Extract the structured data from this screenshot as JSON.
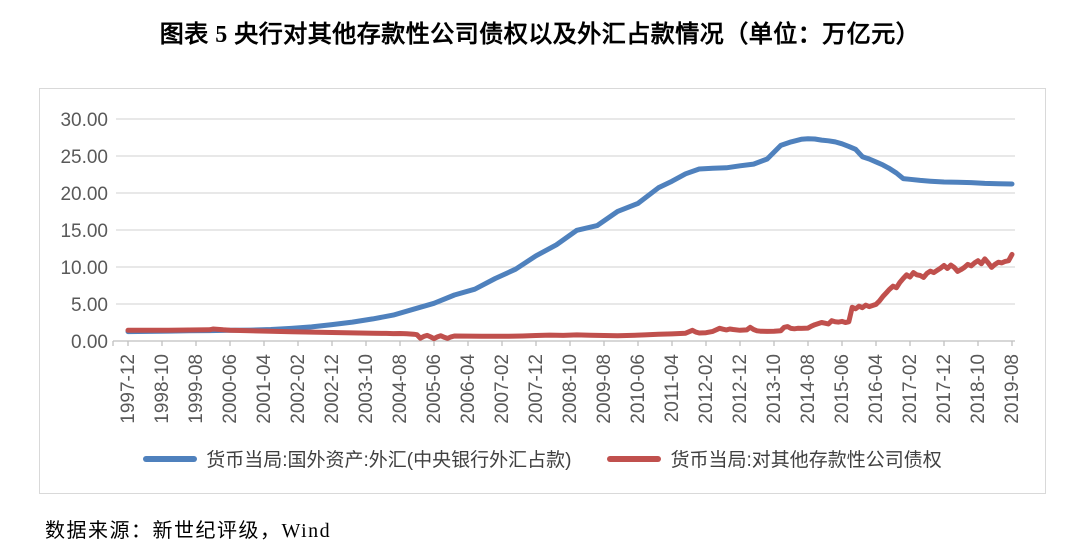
{
  "title": "图表 5  央行对其他存款性公司债权以及外汇占款情况（单位：万亿元）",
  "source_note": "数据来源：新世纪评级，Wind",
  "colors": {
    "series_fx_blue": "#4f81bd",
    "series_claims_red": "#c0504d",
    "gridline": "#d9d9d9",
    "axis": "#bfbfbf",
    "tick_label": "#595959",
    "legend_text": "#404040",
    "border": "#d9d9d9"
  },
  "chart_data": {
    "type": "line",
    "title": "图表 5  央行对其他存款性公司债权以及外汇占款情况（单位：万亿元）",
    "unit_label": "万亿元",
    "xlabel": "",
    "ylabel": "",
    "ylim": [
      0,
      30
    ],
    "y_tick_step": 5,
    "y_tick_labels": [
      "0.00",
      "5.00",
      "10.00",
      "15.00",
      "20.00",
      "25.00",
      "30.00"
    ],
    "x_tick_labels": [
      "1997-12",
      "1998-10",
      "1999-08",
      "2000-06",
      "2001-04",
      "2002-02",
      "2002-12",
      "2003-10",
      "2004-08",
      "2005-06",
      "2006-04",
      "2007-02",
      "2007-12",
      "2008-10",
      "2009-08",
      "2010-06",
      "2011-04",
      "2012-02",
      "2012-12",
      "2013-10",
      "2014-08",
      "2015-06",
      "2016-04",
      "2017-02",
      "2017-12",
      "2018-10",
      "2019-08"
    ],
    "x_month_span": 260,
    "grid": "horizontal",
    "legend_position": "bottom",
    "series": [
      {
        "name": "货币当局:国外资产:外汇(中央银行外汇占款)",
        "color": "#4f81bd",
        "points": [
          [
            0,
            1.27
          ],
          [
            6,
            1.3
          ],
          [
            12,
            1.34
          ],
          [
            18,
            1.38
          ],
          [
            24,
            1.41
          ],
          [
            30,
            1.44
          ],
          [
            36,
            1.47
          ],
          [
            42,
            1.55
          ],
          [
            48,
            1.7
          ],
          [
            54,
            1.9
          ],
          [
            60,
            2.21
          ],
          [
            66,
            2.55
          ],
          [
            72,
            2.98
          ],
          [
            78,
            3.5
          ],
          [
            84,
            4.3
          ],
          [
            90,
            5.1
          ],
          [
            96,
            6.21
          ],
          [
            102,
            7.0
          ],
          [
            108,
            8.44
          ],
          [
            114,
            9.7
          ],
          [
            120,
            11.52
          ],
          [
            126,
            13.0
          ],
          [
            132,
            14.96
          ],
          [
            138,
            15.6
          ],
          [
            144,
            17.51
          ],
          [
            150,
            18.6
          ],
          [
            156,
            20.7
          ],
          [
            160,
            21.6
          ],
          [
            164,
            22.6
          ],
          [
            168,
            23.24
          ],
          [
            172,
            23.35
          ],
          [
            176,
            23.4
          ],
          [
            180,
            23.67
          ],
          [
            184,
            23.9
          ],
          [
            188,
            24.6
          ],
          [
            192,
            26.43
          ],
          [
            195,
            26.9
          ],
          [
            198,
            27.25
          ],
          [
            200,
            27.32
          ],
          [
            202,
            27.3
          ],
          [
            204,
            27.15
          ],
          [
            206,
            27.05
          ],
          [
            208,
            26.9
          ],
          [
            210,
            26.65
          ],
          [
            212,
            26.3
          ],
          [
            214,
            25.9
          ],
          [
            216,
            24.9
          ],
          [
            218,
            24.6
          ],
          [
            220,
            24.2
          ],
          [
            222,
            23.8
          ],
          [
            224,
            23.3
          ],
          [
            226,
            22.7
          ],
          [
            228,
            21.94
          ],
          [
            230,
            21.85
          ],
          [
            233,
            21.7
          ],
          [
            236,
            21.6
          ],
          [
            240,
            21.48
          ],
          [
            244,
            21.44
          ],
          [
            248,
            21.4
          ],
          [
            252,
            21.3
          ],
          [
            256,
            21.26
          ],
          [
            260,
            21.21
          ]
        ]
      },
      {
        "name": "货币当局:对其他存款性公司债权",
        "color": "#c0504d",
        "points": [
          [
            0,
            1.45
          ],
          [
            6,
            1.45
          ],
          [
            12,
            1.46
          ],
          [
            18,
            1.48
          ],
          [
            24,
            1.52
          ],
          [
            25,
            1.62
          ],
          [
            26,
            1.6
          ],
          [
            28,
            1.52
          ],
          [
            30,
            1.46
          ],
          [
            33,
            1.42
          ],
          [
            36,
            1.38
          ],
          [
            42,
            1.32
          ],
          [
            48,
            1.26
          ],
          [
            54,
            1.2
          ],
          [
            60,
            1.15
          ],
          [
            66,
            1.1
          ],
          [
            72,
            1.06
          ],
          [
            76,
            1.03
          ],
          [
            78,
            1.0
          ],
          [
            80,
            1.02
          ],
          [
            82,
            0.98
          ],
          [
            84,
            0.92
          ],
          [
            85,
            0.85
          ],
          [
            86,
            0.38
          ],
          [
            87,
            0.62
          ],
          [
            88,
            0.76
          ],
          [
            89,
            0.55
          ],
          [
            90,
            0.32
          ],
          [
            91,
            0.56
          ],
          [
            92,
            0.72
          ],
          [
            93,
            0.5
          ],
          [
            94,
            0.35
          ],
          [
            95,
            0.56
          ],
          [
            96,
            0.68
          ],
          [
            100,
            0.66
          ],
          [
            104,
            0.65
          ],
          [
            108,
            0.64
          ],
          [
            112,
            0.65
          ],
          [
            116,
            0.68
          ],
          [
            120,
            0.74
          ],
          [
            124,
            0.8
          ],
          [
            126,
            0.78
          ],
          [
            128,
            0.76
          ],
          [
            132,
            0.82
          ],
          [
            136,
            0.78
          ],
          [
            140,
            0.74
          ],
          [
            144,
            0.72
          ],
          [
            148,
            0.76
          ],
          [
            152,
            0.82
          ],
          [
            156,
            0.9
          ],
          [
            160,
            0.96
          ],
          [
            164,
            1.05
          ],
          [
            166,
            1.45
          ],
          [
            167,
            1.2
          ],
          [
            168,
            1.08
          ],
          [
            170,
            1.12
          ],
          [
            172,
            1.3
          ],
          [
            174,
            1.72
          ],
          [
            175,
            1.6
          ],
          [
            176,
            1.5
          ],
          [
            177,
            1.62
          ],
          [
            178,
            1.55
          ],
          [
            180,
            1.45
          ],
          [
            182,
            1.5
          ],
          [
            183,
            1.85
          ],
          [
            184,
            1.55
          ],
          [
            185,
            1.38
          ],
          [
            186,
            1.32
          ],
          [
            188,
            1.3
          ],
          [
            190,
            1.33
          ],
          [
            192,
            1.38
          ],
          [
            193,
            1.85
          ],
          [
            194,
            1.95
          ],
          [
            195,
            1.7
          ],
          [
            196,
            1.65
          ],
          [
            197,
            1.72
          ],
          [
            198,
            1.7
          ],
          [
            200,
            1.75
          ],
          [
            201,
            2.0
          ],
          [
            202,
            2.2
          ],
          [
            203,
            2.35
          ],
          [
            204,
            2.5
          ],
          [
            205,
            2.4
          ],
          [
            206,
            2.3
          ],
          [
            207,
            2.75
          ],
          [
            208,
            2.6
          ],
          [
            209,
            2.55
          ],
          [
            210,
            2.65
          ],
          [
            211,
            2.5
          ],
          [
            212,
            2.6
          ],
          [
            213,
            4.55
          ],
          [
            214,
            4.35
          ],
          [
            215,
            4.7
          ],
          [
            216,
            4.5
          ],
          [
            217,
            4.85
          ],
          [
            218,
            4.65
          ],
          [
            219,
            4.8
          ],
          [
            220,
            4.95
          ],
          [
            221,
            5.4
          ],
          [
            222,
            6.0
          ],
          [
            223,
            6.5
          ],
          [
            224,
            7.0
          ],
          [
            225,
            7.4
          ],
          [
            226,
            7.2
          ],
          [
            227,
            7.9
          ],
          [
            228,
            8.45
          ],
          [
            229,
            8.95
          ],
          [
            230,
            8.65
          ],
          [
            231,
            9.25
          ],
          [
            232,
            8.95
          ],
          [
            233,
            8.85
          ],
          [
            234,
            8.6
          ],
          [
            235,
            9.15
          ],
          [
            236,
            9.45
          ],
          [
            237,
            9.25
          ],
          [
            238,
            9.55
          ],
          [
            239,
            9.85
          ],
          [
            240,
            10.2
          ],
          [
            241,
            9.8
          ],
          [
            242,
            10.25
          ],
          [
            243,
            9.95
          ],
          [
            244,
            9.4
          ],
          [
            245,
            9.65
          ],
          [
            246,
            9.95
          ],
          [
            247,
            10.35
          ],
          [
            248,
            10.15
          ],
          [
            249,
            10.55
          ],
          [
            250,
            10.85
          ],
          [
            251,
            10.45
          ],
          [
            252,
            11.1
          ],
          [
            253,
            10.55
          ],
          [
            254,
            9.95
          ],
          [
            255,
            10.35
          ],
          [
            256,
            10.65
          ],
          [
            257,
            10.55
          ],
          [
            258,
            10.75
          ],
          [
            259,
            10.85
          ],
          [
            260,
            11.7
          ]
        ]
      }
    ]
  }
}
